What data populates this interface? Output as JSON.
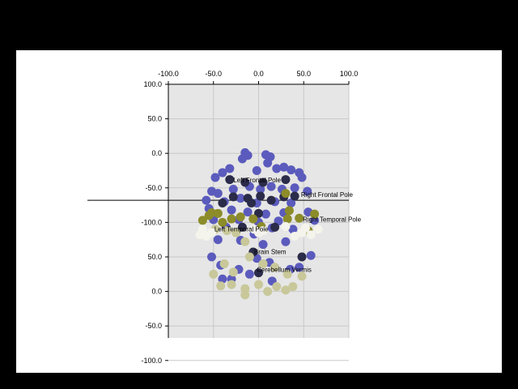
{
  "colors": {
    "window_background": "#000000",
    "sheet_background": "#ffffff",
    "plot_background": "#e6e6e6",
    "gridline": "#c8c8c8",
    "series_blue": "#5b5bbd",
    "series_navy": "#2b2b4a",
    "series_olive": "#8c8c2a",
    "series_khaki": "#c8c89a",
    "series_white": "#f4f4ec"
  },
  "chart_data": {
    "type": "scatter",
    "title": "",
    "xlabel": "",
    "ylabel": "",
    "x_axis_position": "top",
    "x_ticks": [
      "-100.0",
      "-50.0",
      "0.0",
      "50.0",
      "100.0"
    ],
    "xlim": [
      -100,
      100
    ],
    "y_ticks": [
      "100.0",
      "50.0",
      "0.0",
      "-50.0",
      "-100.0",
      "50.0",
      "0.0",
      "-50.0",
      "-100.0"
    ],
    "grid": true,
    "legend": "none",
    "annotations": [
      {
        "text": "Left Frontal Pole",
        "x": -28,
        "y": -42
      },
      {
        "text": "Right Frontal Pole",
        "x": 47,
        "y": -63
      },
      {
        "text": "Right Temporal Pole",
        "x": 49,
        "y": -99
      },
      {
        "text": "Left Temporal Pole",
        "x": -49,
        "y": -113
      },
      {
        "text": "Brain Stem",
        "x": -5,
        "y": -146
      },
      {
        "text": "Cerebellum Vermis",
        "x": -2,
        "y": -172
      }
    ],
    "series": [
      {
        "color": "#5b5bbd",
        "points": [
          [
            -15,
            1
          ],
          [
            -12,
            -3
          ],
          [
            8,
            -2
          ],
          [
            13,
            -5
          ],
          [
            -18,
            -8
          ],
          [
            10,
            -14
          ],
          [
            -32,
            -22
          ],
          [
            -40,
            -28
          ],
          [
            28,
            -20
          ],
          [
            36,
            -24
          ],
          [
            45,
            -28
          ],
          [
            -48,
            -35
          ],
          [
            -2,
            -25
          ],
          [
            20,
            -22
          ],
          [
            48,
            -35
          ],
          [
            -52,
            -55
          ],
          [
            -45,
            -58
          ],
          [
            -28,
            -52
          ],
          [
            -10,
            -48
          ],
          [
            2,
            -52
          ],
          [
            14,
            -48
          ],
          [
            26,
            -52
          ],
          [
            40,
            -50
          ],
          [
            54,
            -55
          ],
          [
            -58,
            -68
          ],
          [
            -38,
            -70
          ],
          [
            -20,
            -65
          ],
          [
            -2,
            -72
          ],
          [
            18,
            -70
          ],
          [
            36,
            -72
          ],
          [
            -55,
            -80
          ],
          [
            -30,
            -82
          ],
          [
            -12,
            -85
          ],
          [
            8,
            -88
          ],
          [
            28,
            -86
          ],
          [
            55,
            -85
          ],
          [
            -50,
            -96
          ],
          [
            -22,
            -96
          ],
          [
            0,
            -100
          ],
          [
            22,
            -98
          ],
          [
            62,
            -97
          ],
          [
            -36,
            -107
          ],
          [
            15,
            -108
          ],
          [
            38,
            -110
          ],
          [
            -5,
            -117
          ],
          [
            -45,
            -125
          ],
          [
            -20,
            -126
          ],
          [
            5,
            -132
          ],
          [
            30,
            -128
          ],
          [
            58,
            -148
          ],
          [
            -52,
            -150
          ],
          [
            -42,
            -162
          ],
          [
            -22,
            -168
          ],
          [
            -2,
            -152
          ],
          [
            12,
            -158
          ],
          [
            45,
            -165
          ],
          [
            -40,
            -182
          ],
          [
            -30,
            -182
          ],
          [
            -10,
            -175
          ],
          [
            15,
            -185
          ],
          [
            35,
            -168
          ]
        ]
      },
      {
        "color": "#2b2b4a",
        "points": [
          [
            -32,
            -38
          ],
          [
            -15,
            -42
          ],
          [
            5,
            -42
          ],
          [
            30,
            -38
          ],
          [
            40,
            -62
          ],
          [
            -28,
            -63
          ],
          [
            -12,
            -65
          ],
          [
            2,
            -62
          ],
          [
            -8,
            -72
          ],
          [
            14,
            -68
          ],
          [
            28,
            -63
          ],
          [
            -40,
            -72
          ],
          [
            0,
            -87
          ],
          [
            -18,
            -107
          ],
          [
            18,
            -107
          ],
          [
            -6,
            -143
          ],
          [
            0,
            -173
          ],
          [
            48,
            -150
          ]
        ]
      },
      {
        "color": "#8c8c2a",
        "points": [
          [
            -62,
            -97
          ],
          [
            -52,
            -86
          ],
          [
            -45,
            -87
          ],
          [
            -40,
            -100
          ],
          [
            -30,
            -95
          ],
          [
            -20,
            -92
          ],
          [
            32,
            -95
          ],
          [
            45,
            -94
          ],
          [
            62,
            -88
          ],
          [
            55,
            -112
          ],
          [
            30,
            -58
          ],
          [
            34,
            -83
          ],
          [
            -6,
            -95
          ],
          [
            3,
            -106
          ],
          [
            -55,
            -90
          ]
        ]
      },
      {
        "color": "#c8c89a",
        "points": [
          [
            -48,
            -110
          ],
          [
            -35,
            -112
          ],
          [
            -25,
            -115
          ],
          [
            -15,
            -128
          ],
          [
            -10,
            -150
          ],
          [
            5,
            -160
          ],
          [
            18,
            -165
          ],
          [
            32,
            -175
          ],
          [
            -38,
            -160
          ],
          [
            -28,
            -172
          ],
          [
            -50,
            -175
          ],
          [
            -42,
            -192
          ],
          [
            -30,
            -190
          ],
          [
            -15,
            -196
          ],
          [
            0,
            -190
          ],
          [
            20,
            -193
          ],
          [
            38,
            -193
          ],
          [
            48,
            -178
          ],
          [
            -15,
            -205
          ],
          [
            10,
            -200
          ],
          [
            30,
            -198
          ]
        ]
      },
      {
        "color": "#f4f4ec",
        "points": [
          [
            -65,
            -118
          ],
          [
            -58,
            -120
          ],
          [
            -52,
            -115
          ],
          [
            -62,
            -110
          ],
          [
            -5,
            -110
          ],
          [
            0,
            -115
          ],
          [
            5,
            -112
          ],
          [
            40,
            -120
          ],
          [
            48,
            -115
          ],
          [
            58,
            -118
          ],
          [
            52,
            -108
          ],
          [
            66,
            -110
          ],
          [
            30,
            -106
          ]
        ]
      }
    ]
  }
}
